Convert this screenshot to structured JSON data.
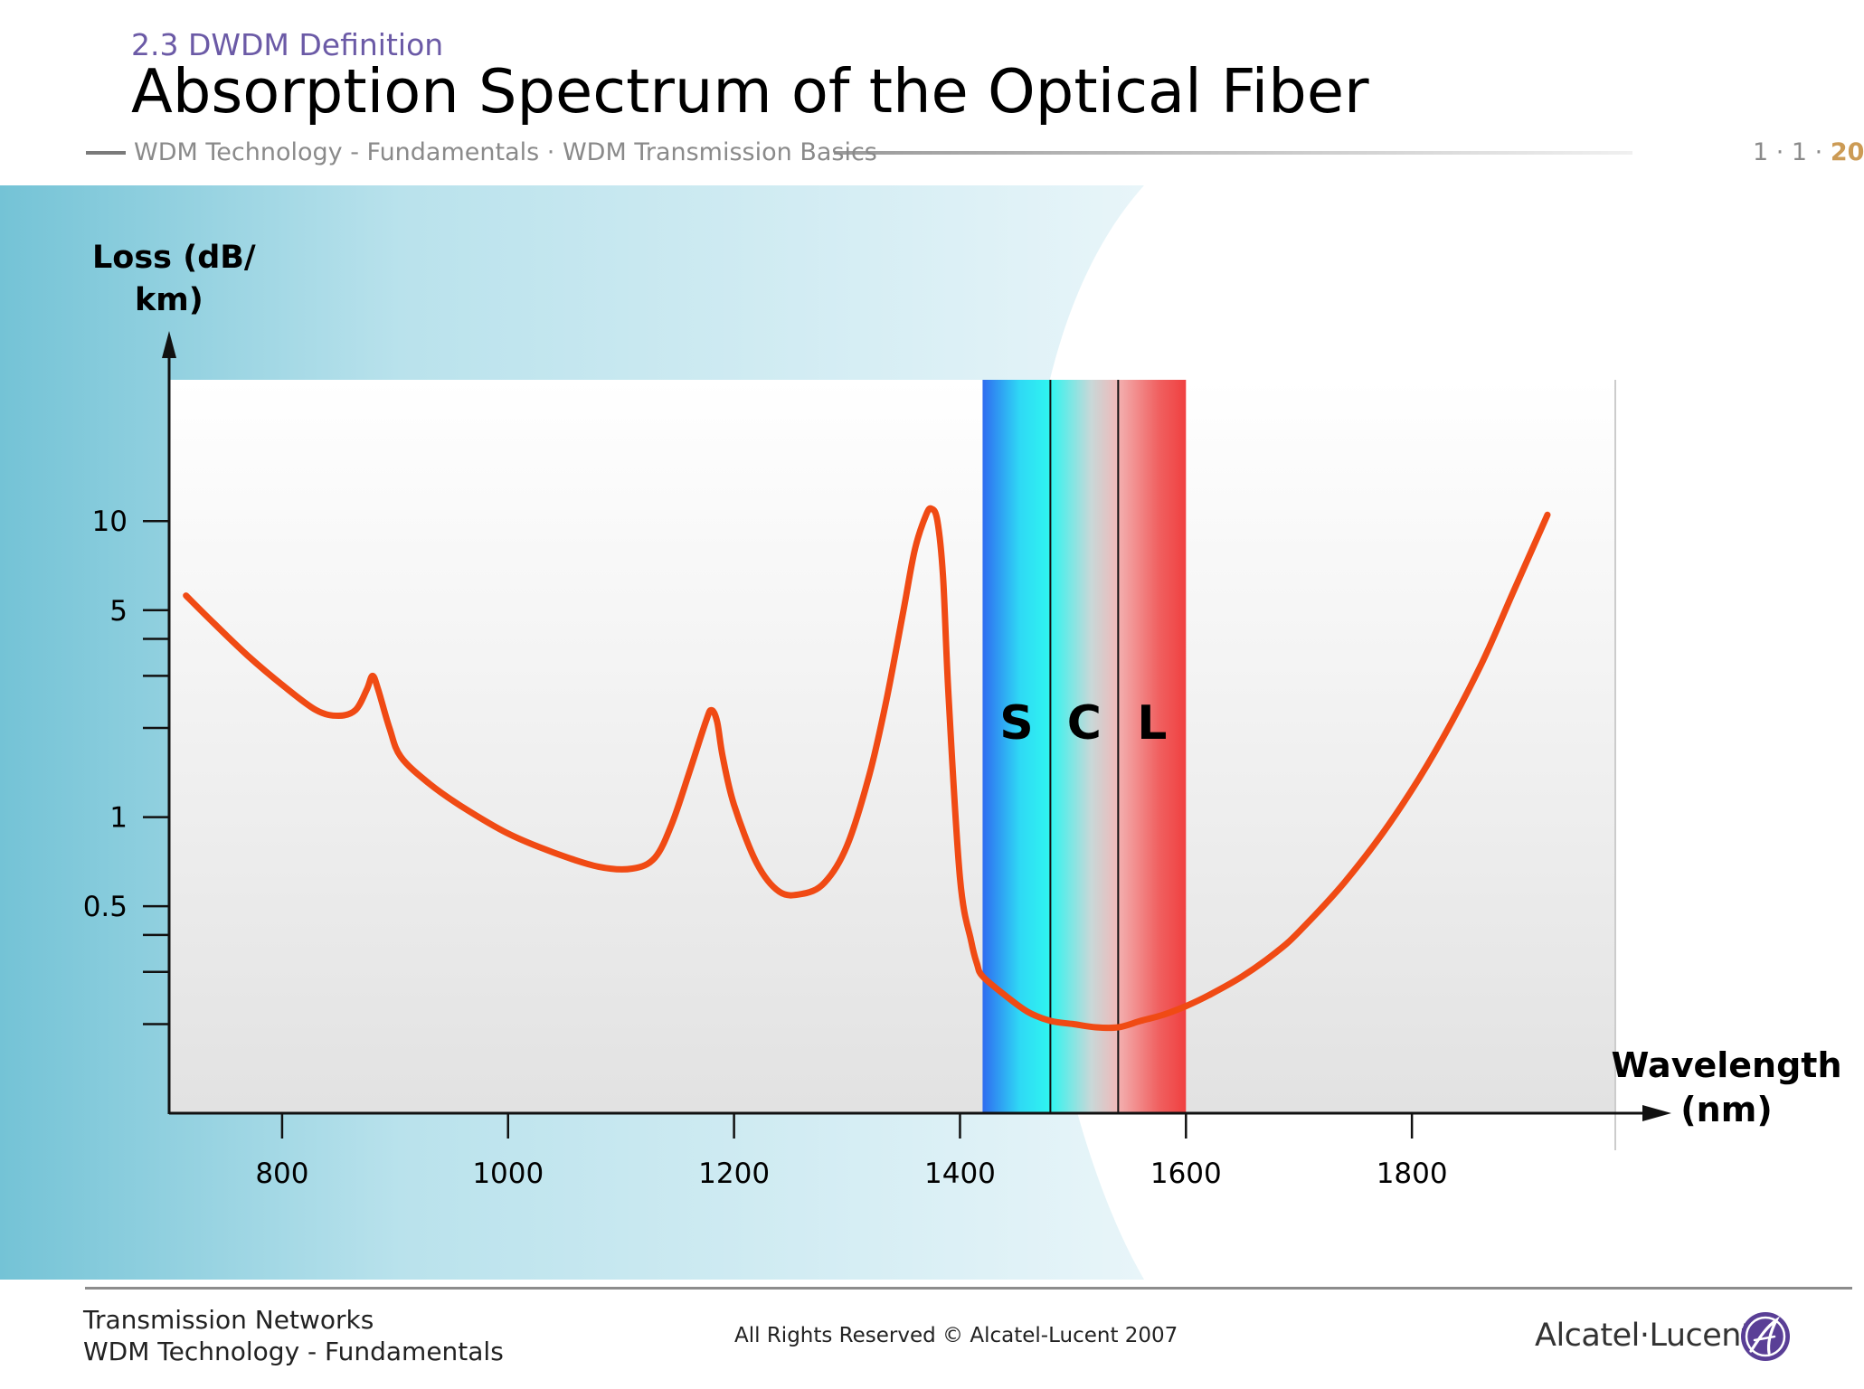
{
  "header": {
    "section": "2.3 DWDM Definition",
    "title": "Absorption Spectrum of the Optical Fiber",
    "breadcrumb": "WDM Technology - Fundamentals · WDM Transmission Basics",
    "page_number_prefix": "1 · 1 · ",
    "page_number_current": "20"
  },
  "footer": {
    "course_line1": "Transmission Networks",
    "course_line2": "WDM Technology - Fundamentals",
    "copyright": "All Rights Reserved © Alcatel-Lucent 2007",
    "logo_text": "Alcatel·Lucent"
  },
  "colors": {
    "curve": "#f04a14",
    "accent_purple": "#6b5aa6",
    "page_number_accent": "#cc9b55",
    "band_blue": "#2f6cf0",
    "band_cyan": "#2ff5f0",
    "band_red": "#f04040"
  },
  "chart_data": {
    "type": "line",
    "title": "",
    "ylabel_line1": "Loss (dB/",
    "ylabel_line2": "km)",
    "xlabel_line1": "Wavelength",
    "xlabel_line2": "(nm)",
    "y_scale": "log",
    "xlim": [
      700,
      1980
    ],
    "ylim": [
      0.1,
      30
    ],
    "x_ticks": [
      {
        "value": 800,
        "label": "800"
      },
      {
        "value": 1000,
        "label": "1000"
      },
      {
        "value": 1200,
        "label": "1200"
      },
      {
        "value": 1400,
        "label": "1400"
      },
      {
        "value": 1600,
        "label": "1600"
      },
      {
        "value": 1800,
        "label": "1800"
      }
    ],
    "y_ticks": [
      {
        "value": 10,
        "label": "10"
      },
      {
        "value": 5,
        "label": "5"
      },
      {
        "value": 4,
        "label": ""
      },
      {
        "value": 3,
        "label": ""
      },
      {
        "value": 2,
        "label": ""
      },
      {
        "value": 1,
        "label": "1"
      },
      {
        "value": 0.5,
        "label": "0.5"
      },
      {
        "value": 0.4,
        "label": ""
      },
      {
        "value": 0.3,
        "label": ""
      },
      {
        "value": 0.2,
        "label": ""
      }
    ],
    "bands": [
      {
        "label": "S",
        "from": 1420,
        "to": 1480
      },
      {
        "label": "C",
        "from": 1480,
        "to": 1540
      },
      {
        "label": "L",
        "from": 1540,
        "to": 1600
      }
    ],
    "series": [
      {
        "x": [
          715,
          740,
          770,
          800,
          830,
          850,
          865,
          875,
          880,
          885,
          895,
          905,
          930,
          960,
          1000,
          1040,
          1080,
          1110,
          1130,
          1145,
          1160,
          1175,
          1180,
          1185,
          1190,
          1200,
          1220,
          1240,
          1260,
          1280,
          1300,
          1320,
          1335,
          1350,
          1360,
          1370,
          1375,
          1380,
          1385,
          1390,
          1400,
          1410,
          1415,
          1420,
          1440,
          1460,
          1480,
          1500,
          1520,
          1540,
          1560,
          1580,
          1600,
          1620,
          1650,
          1680,
          1700,
          1740,
          1780,
          1820,
          1860,
          1890,
          1920
        ],
        "y": [
          5.6,
          4.5,
          3.5,
          2.8,
          2.3,
          2.2,
          2.3,
          2.7,
          3.0,
          2.7,
          2.0,
          1.6,
          1.3,
          1.08,
          0.88,
          0.76,
          0.68,
          0.67,
          0.73,
          0.95,
          1.4,
          2.1,
          2.3,
          2.1,
          1.6,
          1.1,
          0.7,
          0.56,
          0.55,
          0.6,
          0.8,
          1.4,
          2.5,
          5.0,
          8.0,
          10.5,
          11.0,
          10.0,
          6.5,
          2.5,
          0.62,
          0.38,
          0.32,
          0.29,
          0.25,
          0.22,
          0.205,
          0.2,
          0.195,
          0.195,
          0.205,
          0.215,
          0.23,
          0.25,
          0.29,
          0.35,
          0.41,
          0.6,
          0.95,
          1.65,
          3.2,
          5.8,
          10.5
        ]
      }
    ],
    "grid": false,
    "legend": "none"
  }
}
